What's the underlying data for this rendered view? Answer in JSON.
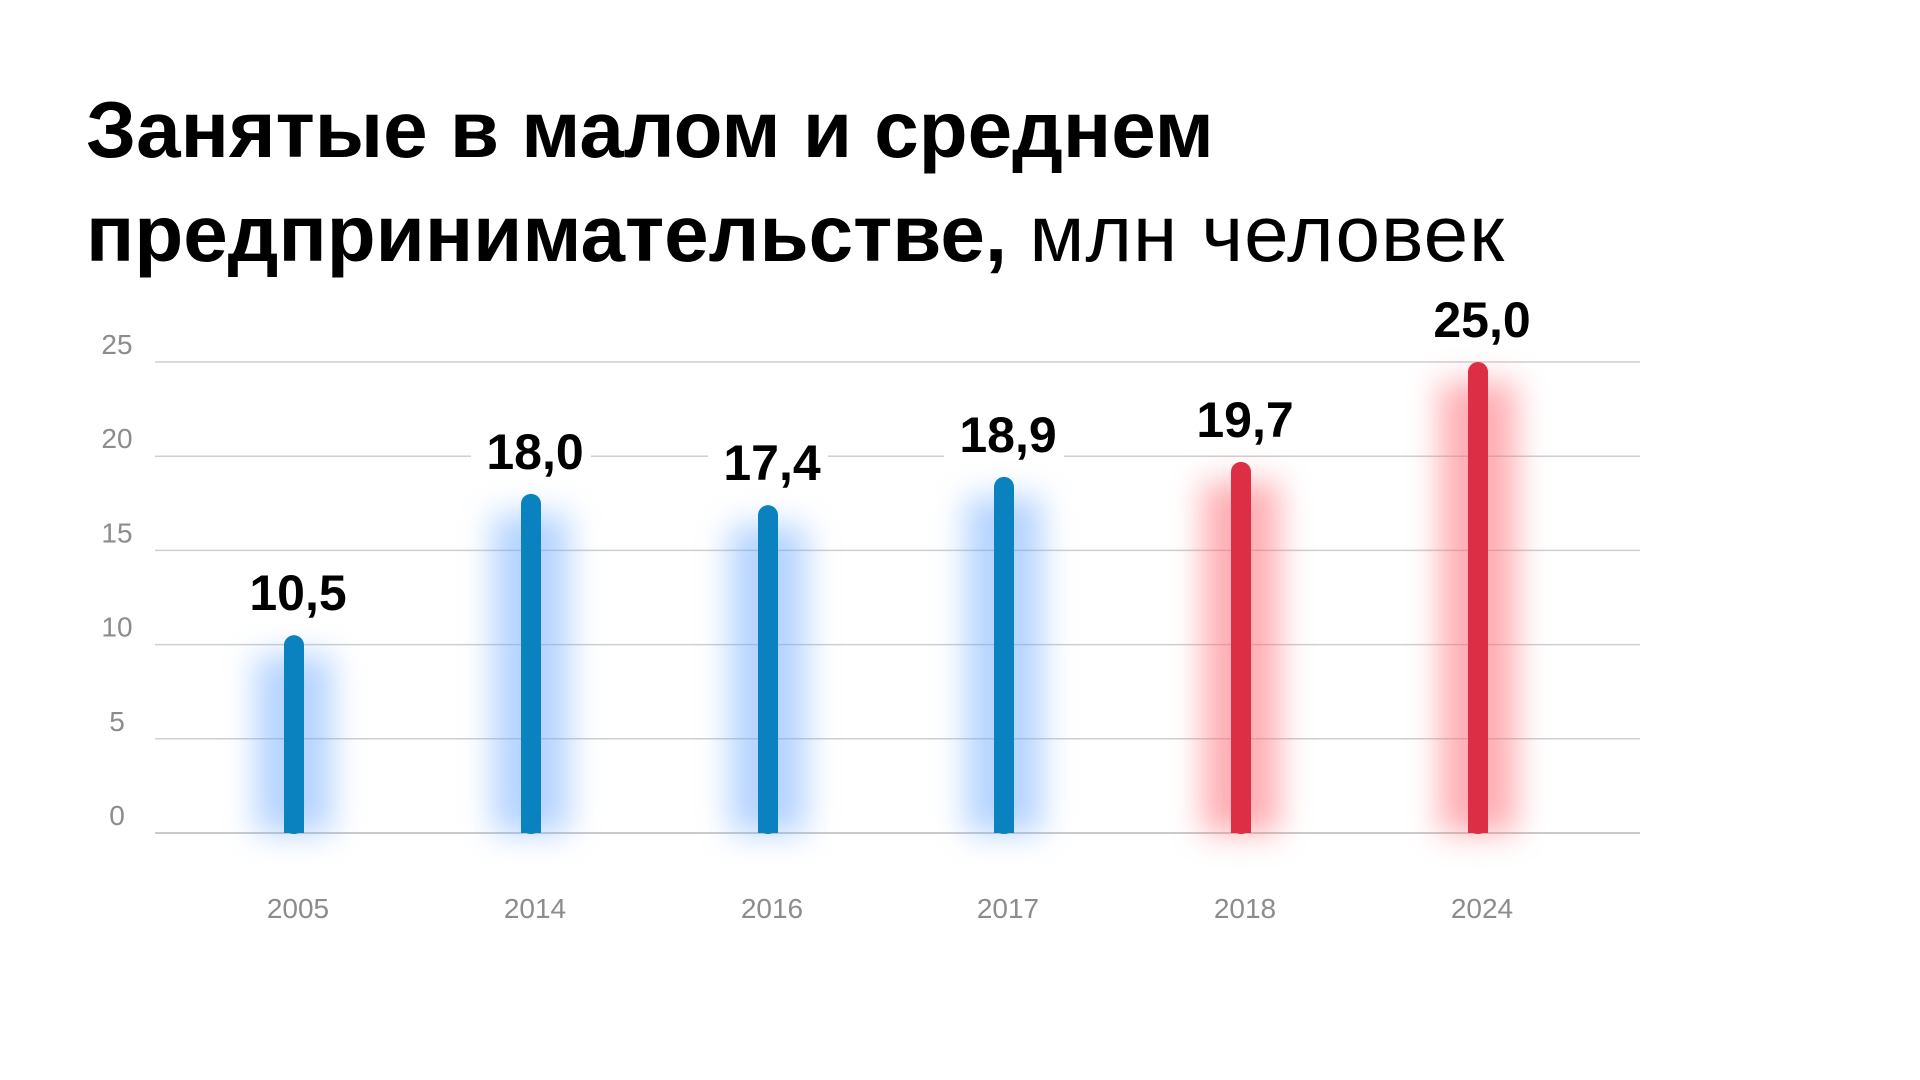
{
  "title": {
    "bold": "Занятые в малом и среднем предпринимательстве,",
    "light": "млн человек"
  },
  "colors": {
    "historical": "#0a82c0",
    "historical_glow": "#6aa8ff",
    "forecast": "#dc2e45",
    "forecast_glow": "#ff6b75",
    "grid": "#cfcfcf",
    "tick_text": "#8c8c8c",
    "value_text": "#000000"
  },
  "chart_data": {
    "type": "bar",
    "title": "Занятые в малом и среднем предпринимательстве, млн человек",
    "xlabel": "",
    "ylabel": "",
    "categories": [
      "2005",
      "2014",
      "2016",
      "2017",
      "2018",
      "2024"
    ],
    "values": [
      10.5,
      18.0,
      17.4,
      18.9,
      19.7,
      25.0
    ],
    "value_labels": [
      "10,5",
      "18,0",
      "17,4",
      "18,9",
      "19,7",
      "25,0"
    ],
    "bar_groups": [
      "blue",
      "blue",
      "blue",
      "blue",
      "red",
      "red"
    ],
    "ylim": [
      0,
      25
    ],
    "yticks": [
      0,
      5,
      10,
      15,
      20,
      25
    ],
    "grid": true,
    "legend": "none"
  }
}
